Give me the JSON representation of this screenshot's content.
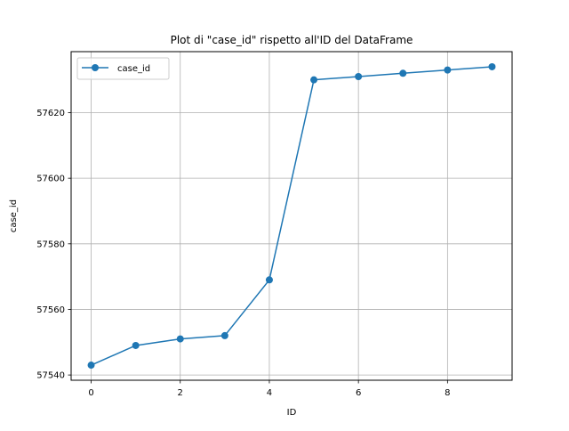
{
  "chart_data": {
    "type": "line",
    "title": "Plot di \"case_id\" rispetto all'ID del DataFrame",
    "xlabel": "ID",
    "ylabel": "case_id",
    "xlim": [
      -0.45,
      9.45
    ],
    "ylim": [
      57538.4,
      57638.6
    ],
    "xticks": [
      0,
      2,
      4,
      6,
      8
    ],
    "yticks": [
      57540,
      57560,
      57580,
      57600,
      57620
    ],
    "grid": true,
    "legend_position": "upper-left",
    "series": [
      {
        "name": "case_id",
        "color": "#1f77b4",
        "marker": "circle",
        "x": [
          0,
          1,
          2,
          3,
          4,
          5,
          6,
          7,
          8,
          9
        ],
        "y": [
          57543,
          57549,
          57551,
          57552,
          57569,
          57630,
          57631,
          57632,
          57633,
          57634
        ]
      }
    ]
  }
}
